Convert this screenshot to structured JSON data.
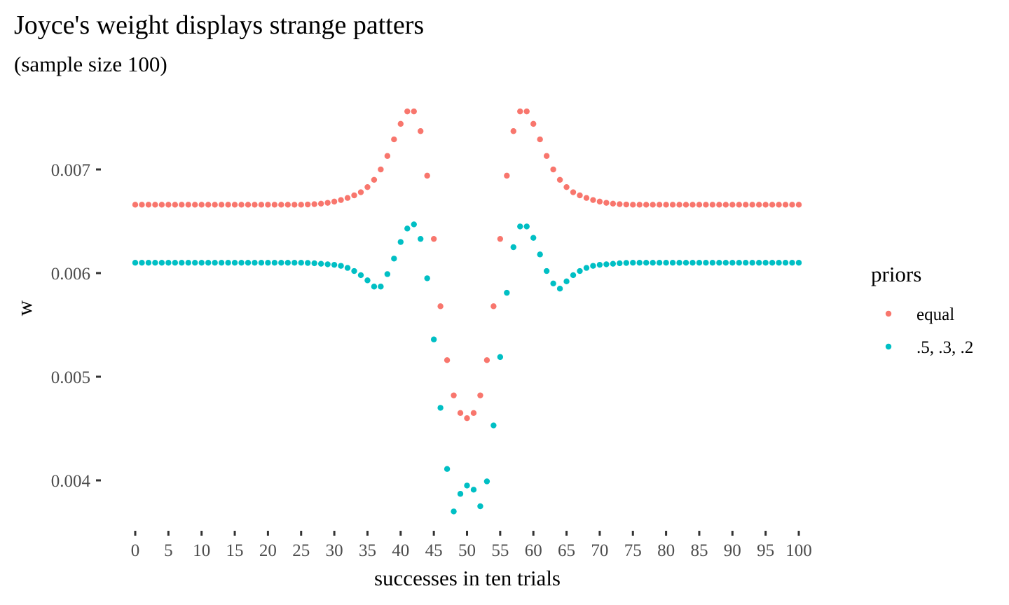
{
  "chart_data": {
    "type": "scatter",
    "title": "Joyce's weight displays strange patters",
    "subtitle": "(sample size 100)",
    "xlabel": "successes in ten trials",
    "ylabel": "w",
    "xlim": [
      0,
      100
    ],
    "ylim": [
      0.00365,
      0.00765
    ],
    "x_ticks": [
      0,
      5,
      10,
      15,
      20,
      25,
      30,
      35,
      40,
      45,
      50,
      55,
      60,
      65,
      70,
      75,
      80,
      85,
      90,
      95,
      100
    ],
    "y_ticks": [
      {
        "value": 0.004,
        "label": "0.004"
      },
      {
        "value": 0.005,
        "label": "0.005"
      },
      {
        "value": 0.006,
        "label": "0.006"
      },
      {
        "value": 0.007,
        "label": "0.007"
      }
    ],
    "grid": false,
    "legend": {
      "title": "priors",
      "position": "right"
    },
    "series": [
      {
        "name": "equal",
        "color": "#F8766D",
        "x": [
          0,
          1,
          2,
          3,
          4,
          5,
          6,
          7,
          8,
          9,
          10,
          11,
          12,
          13,
          14,
          15,
          16,
          17,
          18,
          19,
          20,
          21,
          22,
          23,
          24,
          25,
          26,
          27,
          28,
          29,
          30,
          31,
          32,
          33,
          34,
          35,
          36,
          37,
          38,
          39,
          40,
          41,
          42,
          43,
          44,
          45,
          46,
          47,
          48,
          49,
          50,
          51,
          52,
          53,
          54,
          55,
          56,
          57,
          58,
          59,
          60,
          61,
          62,
          63,
          64,
          65,
          66,
          67,
          68,
          69,
          70,
          71,
          72,
          73,
          74,
          75,
          76,
          77,
          78,
          79,
          80,
          81,
          82,
          83,
          84,
          85,
          86,
          87,
          88,
          89,
          90,
          91,
          92,
          93,
          94,
          95,
          96,
          97,
          98,
          99,
          100
        ],
        "y": [
          0.00666,
          0.00666,
          0.00666,
          0.00666,
          0.00666,
          0.00666,
          0.00666,
          0.00666,
          0.00666,
          0.00666,
          0.00666,
          0.00666,
          0.00666,
          0.00666,
          0.00666,
          0.00666,
          0.00666,
          0.00666,
          0.00666,
          0.00666,
          0.00666,
          0.00666,
          0.00666,
          0.00666,
          0.00666,
          0.00666,
          0.006662,
          0.006665,
          0.00667,
          0.006678,
          0.00669,
          0.006705,
          0.006725,
          0.00675,
          0.00678,
          0.00683,
          0.0069,
          0.007,
          0.00713,
          0.00729,
          0.00744,
          0.00756,
          0.00756,
          0.00737,
          0.00694,
          0.00633,
          0.00568,
          0.00516,
          0.00482,
          0.00465,
          0.0046,
          0.00465,
          0.00482,
          0.00516,
          0.00568,
          0.00633,
          0.00694,
          0.00737,
          0.00756,
          0.00756,
          0.00744,
          0.00729,
          0.00713,
          0.007,
          0.0069,
          0.00683,
          0.00678,
          0.00675,
          0.006725,
          0.006705,
          0.00669,
          0.006678,
          0.00667,
          0.006665,
          0.006662,
          0.00666,
          0.00666,
          0.00666,
          0.00666,
          0.00666,
          0.00666,
          0.00666,
          0.00666,
          0.00666,
          0.00666,
          0.00666,
          0.00666,
          0.00666,
          0.00666,
          0.00666,
          0.00666,
          0.00666,
          0.00666,
          0.00666,
          0.00666,
          0.00666,
          0.00666,
          0.00666,
          0.00666,
          0.00666,
          0.00666
        ]
      },
      {
        "name": ".5, .3, .2",
        "color": "#00BFC4",
        "x": [
          0,
          1,
          2,
          3,
          4,
          5,
          6,
          7,
          8,
          9,
          10,
          11,
          12,
          13,
          14,
          15,
          16,
          17,
          18,
          19,
          20,
          21,
          22,
          23,
          24,
          25,
          26,
          27,
          28,
          29,
          30,
          31,
          32,
          33,
          34,
          35,
          36,
          37,
          38,
          39,
          40,
          41,
          42,
          43,
          44,
          45,
          46,
          47,
          48,
          49,
          50,
          51,
          52,
          53,
          54,
          55,
          56,
          57,
          58,
          59,
          60,
          61,
          62,
          63,
          64,
          65,
          66,
          67,
          68,
          69,
          70,
          71,
          72,
          73,
          74,
          75,
          76,
          77,
          78,
          79,
          80,
          81,
          82,
          83,
          84,
          85,
          86,
          87,
          88,
          89,
          90,
          91,
          92,
          93,
          94,
          95,
          96,
          97,
          98,
          99,
          100
        ],
        "y": [
          0.0061,
          0.0061,
          0.0061,
          0.0061,
          0.0061,
          0.0061,
          0.0061,
          0.0061,
          0.0061,
          0.0061,
          0.0061,
          0.0061,
          0.0061,
          0.0061,
          0.0061,
          0.0061,
          0.0061,
          0.0061,
          0.0061,
          0.0061,
          0.0061,
          0.0061,
          0.0061,
          0.0061,
          0.0061,
          0.0061,
          0.006098,
          0.006095,
          0.00609,
          0.006085,
          0.00608,
          0.00607,
          0.00605,
          0.00602,
          0.00598,
          0.00593,
          0.00587,
          0.00587,
          0.00599,
          0.00614,
          0.0063,
          0.00643,
          0.00647,
          0.00633,
          0.00595,
          0.00536,
          0.0047,
          0.00411,
          0.0037,
          0.00387,
          0.00395,
          0.00391,
          0.00375,
          0.00399,
          0.00453,
          0.00519,
          0.00581,
          0.00625,
          0.00645,
          0.00645,
          0.00634,
          0.00618,
          0.00602,
          0.0059,
          0.00585,
          0.00592,
          0.00598,
          0.00602,
          0.00605,
          0.00607,
          0.00608,
          0.006085,
          0.00609,
          0.006095,
          0.006098,
          0.0061,
          0.0061,
          0.0061,
          0.0061,
          0.0061,
          0.0061,
          0.0061,
          0.0061,
          0.0061,
          0.0061,
          0.0061,
          0.0061,
          0.0061,
          0.0061,
          0.0061,
          0.0061,
          0.0061,
          0.0061,
          0.0061,
          0.0061,
          0.0061,
          0.0061,
          0.0061,
          0.0061,
          0.0061,
          0.0061
        ]
      }
    ]
  }
}
